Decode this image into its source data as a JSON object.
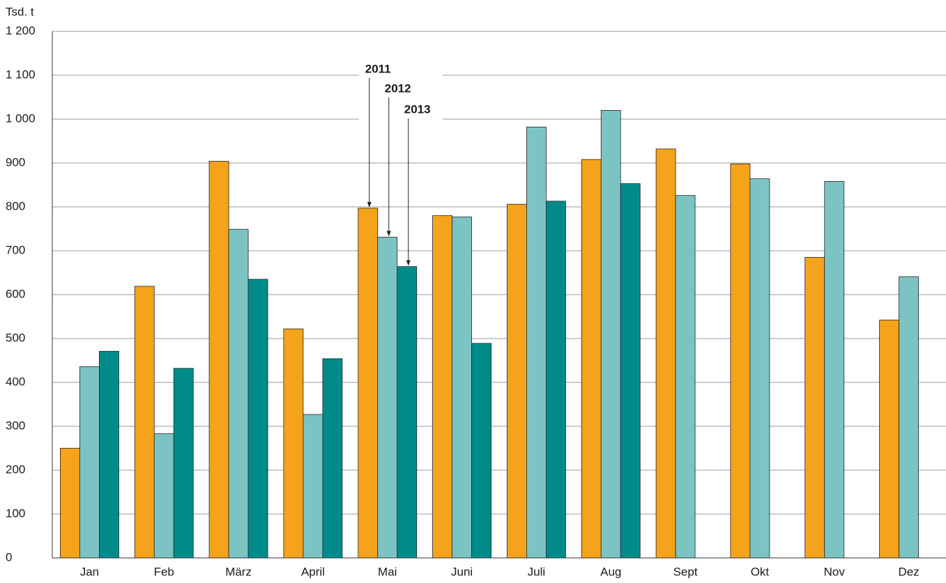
{
  "chart_data": {
    "type": "bar",
    "y_label": "Tsd. t",
    "categories": [
      "Jan",
      "Feb",
      "März",
      "April",
      "Mai",
      "Juni",
      "Juli",
      "Aug",
      "Sept",
      "Okt",
      "Nov",
      "Dez"
    ],
    "series": [
      {
        "name": "2011",
        "color": "#f5a31a",
        "values": [
          250,
          619,
          904,
          522,
          797,
          780,
          806,
          908,
          932,
          898,
          685,
          542
        ]
      },
      {
        "name": "2012",
        "color": "#7cc4c4",
        "values": [
          436,
          283,
          749,
          327,
          731,
          777,
          982,
          1020,
          826,
          864,
          858,
          641
        ]
      },
      {
        "name": "2013",
        "color": "#008b8b",
        "values": [
          471,
          432,
          635,
          454,
          664,
          489,
          813,
          853,
          null,
          null,
          null,
          null
        ]
      }
    ],
    "ylim": [
      0,
      1200
    ],
    "yticks": [
      0,
      100,
      200,
      300,
      400,
      500,
      600,
      700,
      800,
      900,
      {
        "value": 1000,
        "label": "1 000"
      },
      {
        "value": 1100,
        "label": "1 100"
      },
      {
        "value": 1200,
        "label": "1 200"
      }
    ],
    "grid": true
  }
}
